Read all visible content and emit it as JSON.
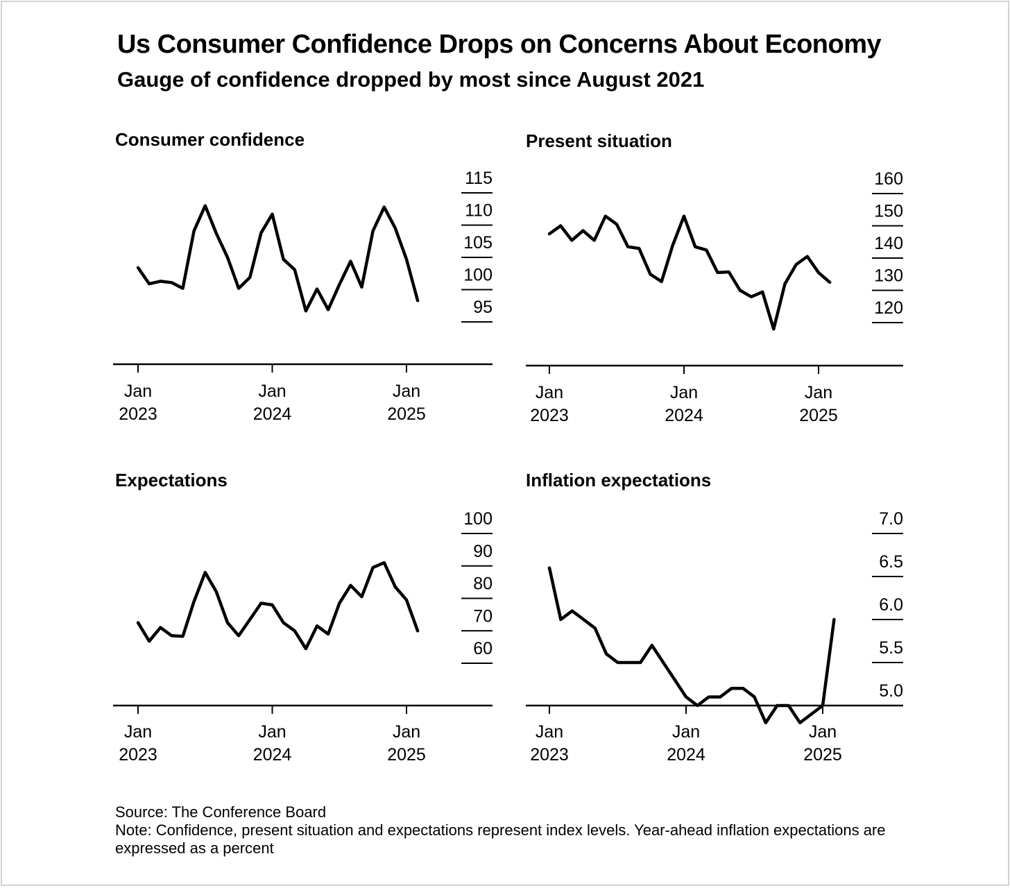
{
  "title": "Us Consumer Confidence Drops on Concerns About Economy",
  "subtitle": "Gauge of confidence dropped by most since August 2021",
  "source": "Source: The Conference Board",
  "note": "Note: Confidence, present situation and expectations represent index levels. Year-ahead inflation expectations are expressed as a percent",
  "colors": {
    "line": "#000000",
    "axis": "#000000",
    "background": "#ffffff",
    "border": "#d2d2d2"
  },
  "x_tick_labels": [
    {
      "month": "Jan",
      "year": "2023"
    },
    {
      "month": "Jan",
      "year": "2024"
    },
    {
      "month": "Jan",
      "year": "2025"
    }
  ],
  "chart_data": [
    {
      "type": "line",
      "title": "Consumer confidence",
      "x_start": "2023-01",
      "x_end": "2025-02",
      "ylim": [
        95,
        115
      ],
      "yticks": [
        "95",
        "100",
        "105",
        "110",
        "115"
      ],
      "y_axis_side": "right",
      "grid": false,
      "values": [
        103.4,
        100.9,
        101.3,
        101.1,
        100.2,
        109.1,
        113.0,
        108.7,
        105.0,
        100.2,
        101.9,
        108.8,
        111.7,
        104.7,
        103.1,
        96.7,
        100.1,
        96.9,
        100.8,
        104.4,
        100.4,
        109.1,
        112.8,
        109.5,
        104.7,
        98.3
      ]
    },
    {
      "type": "line",
      "title": "Present situation",
      "x_start": "2023-01",
      "x_end": "2025-02",
      "ylim": [
        120,
        160
      ],
      "yticks": [
        "120",
        "130",
        "140",
        "150",
        "160"
      ],
      "y_axis_side": "right",
      "grid": false,
      "values": [
        147.5,
        150.0,
        145.5,
        148.5,
        145.5,
        153.0,
        150.5,
        143.5,
        143.0,
        135.0,
        132.7,
        144.0,
        153.0,
        143.5,
        142.5,
        135.5,
        135.7,
        130.0,
        128.0,
        129.5,
        118.0,
        132.0,
        138.0,
        140.5,
        135.5,
        132.5
      ]
    },
    {
      "type": "line",
      "title": "Expectations",
      "x_start": "2023-01",
      "x_end": "2025-02",
      "ylim": [
        60,
        100
      ],
      "yticks": [
        "60",
        "70",
        "80",
        "90",
        "100"
      ],
      "y_axis_side": "right",
      "grid": false,
      "values": [
        72.5,
        66.8,
        71.0,
        68.5,
        68.3,
        79.0,
        88.0,
        82.0,
        72.5,
        68.5,
        73.5,
        78.5,
        78.0,
        72.5,
        70.0,
        64.5,
        71.5,
        69.0,
        78.5,
        84.0,
        80.5,
        89.5,
        91.0,
        83.5,
        79.5,
        70.0
      ]
    },
    {
      "type": "line",
      "title": "Inflation expectations",
      "x_start": "2023-01",
      "x_end": "2025-02",
      "ylim": [
        4.8,
        7.0
      ],
      "yticks": [
        "5.0",
        "5.5",
        "6.0",
        "6.5",
        "7.0"
      ],
      "y_axis_side": "right",
      "grid": false,
      "values": [
        6.6,
        6.0,
        6.1,
        6.0,
        5.9,
        5.6,
        5.5,
        5.5,
        5.5,
        5.7,
        5.5,
        5.3,
        5.1,
        5.0,
        5.1,
        5.1,
        5.2,
        5.2,
        5.1,
        4.8,
        5.0,
        5.0,
        4.8,
        4.9,
        5.0,
        6.0
      ]
    }
  ]
}
